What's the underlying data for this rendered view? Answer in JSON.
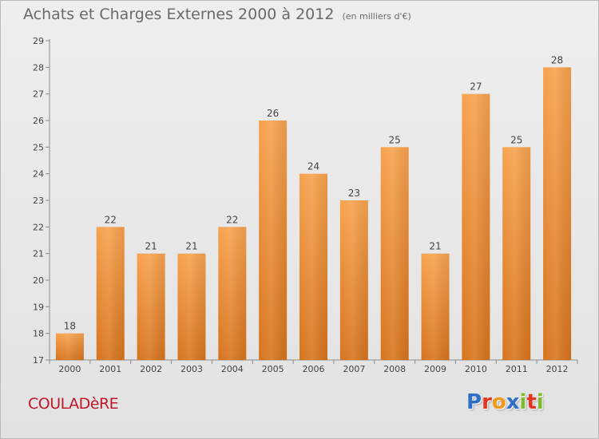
{
  "title": "Achats et Charges Externes 2000 à 2012",
  "unit": "(en milliers d'€)",
  "commune": "COULADèRE",
  "brand": {
    "letters": [
      "P",
      "r",
      "o",
      "x",
      "i",
      "t",
      "i"
    ],
    "colors": [
      "#2e6fc7",
      "#e2361f",
      "#f09a1a",
      "#2e6fc7",
      "#7dbb2b",
      "#e2361f",
      "#7dbb2b"
    ]
  },
  "chart_data": {
    "type": "bar",
    "categories": [
      "2000",
      "2001",
      "2002",
      "2003",
      "2004",
      "2005",
      "2006",
      "2007",
      "2008",
      "2009",
      "2010",
      "2011",
      "2012"
    ],
    "values": [
      18,
      22,
      21,
      21,
      22,
      26,
      24,
      23,
      25,
      21,
      27,
      25,
      28
    ],
    "ylim": [
      17,
      29
    ],
    "yticks": [
      17,
      18,
      19,
      20,
      21,
      22,
      23,
      24,
      25,
      26,
      27,
      28,
      29
    ],
    "grid": false,
    "colors": {
      "bar_light": "#f7a24e",
      "bar_dark": "#d7741d",
      "axis": "#8c8c8c",
      "label": "#444444"
    }
  }
}
